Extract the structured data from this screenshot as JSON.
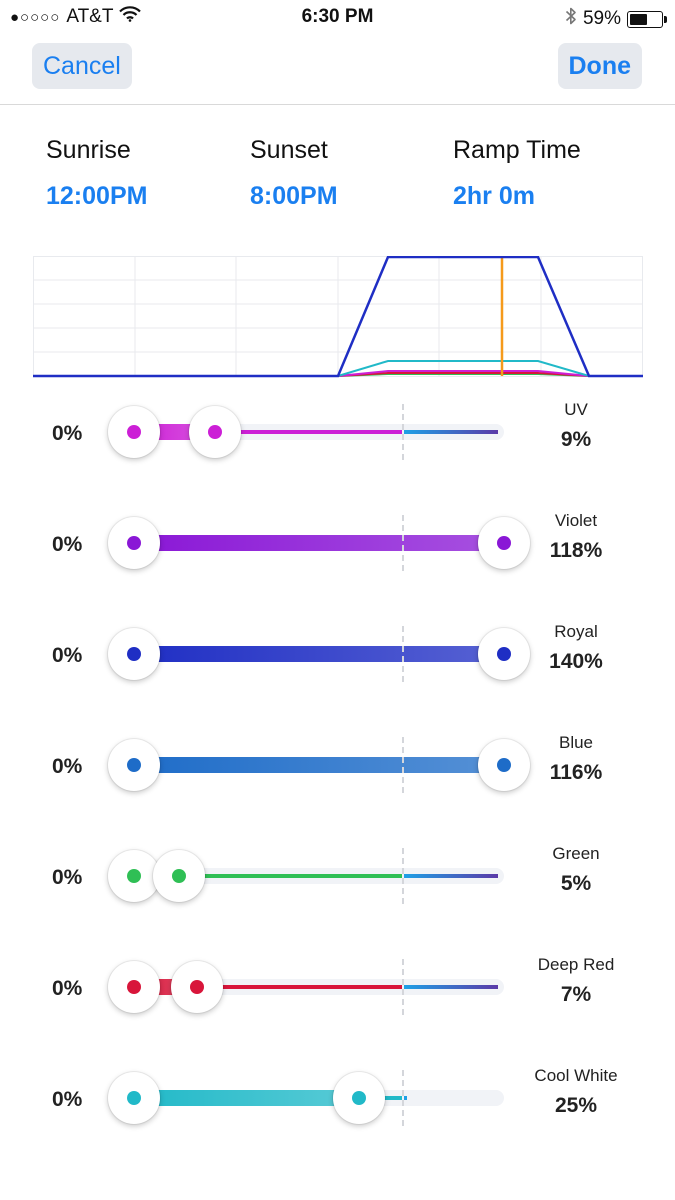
{
  "status": {
    "carrier": "AT&T",
    "signal_dots": "●○○○○",
    "time": "6:30 PM",
    "battery": "59%",
    "battery_level": 0.59,
    "icons": [
      "wifi-icon",
      "bluetooth-icon",
      "battery-icon"
    ]
  },
  "nav": {
    "cancel": "Cancel",
    "done": "Done"
  },
  "schedule": {
    "sunrise_label": "Sunrise",
    "sunrise_value": "12:00PM",
    "sunset_label": "Sunset",
    "sunset_value": "8:00PM",
    "ramp_label": "Ramp Time",
    "ramp_value": "2hr 0m"
  },
  "colors": {
    "accent": "#1a7ff0",
    "uv": "#cc1fd6",
    "violet": "#8a17d6",
    "royal": "#1f2ec4",
    "blue": "#1e6cc8",
    "green": "#2fbf55",
    "deep_red": "#d8153a",
    "cool_white": "#21b9c8",
    "now_marker": "#f59a1b"
  },
  "channels": [
    {
      "name": "UV",
      "value": "9%",
      "min": "0%",
      "level": 0.09,
      "color": "#cc1fd6"
    },
    {
      "name": "Violet",
      "value": "118%",
      "min": "0%",
      "level": 1.18,
      "color": "#8a17d6"
    },
    {
      "name": "Royal",
      "value": "140%",
      "min": "0%",
      "level": 1.4,
      "color": "#1f2ec4"
    },
    {
      "name": "Blue",
      "value": "116%",
      "min": "0%",
      "level": 1.16,
      "color": "#1e6cc8"
    },
    {
      "name": "Green",
      "value": "5%",
      "min": "0%",
      "level": 0.05,
      "color": "#2fbf55"
    },
    {
      "name": "Deep Red",
      "value": "7%",
      "min": "0%",
      "level": 0.07,
      "color": "#d8153a"
    },
    {
      "name": "Cool White",
      "value": "25%",
      "min": "0%",
      "level": 0.25,
      "color": "#21b9c8"
    }
  ]
}
